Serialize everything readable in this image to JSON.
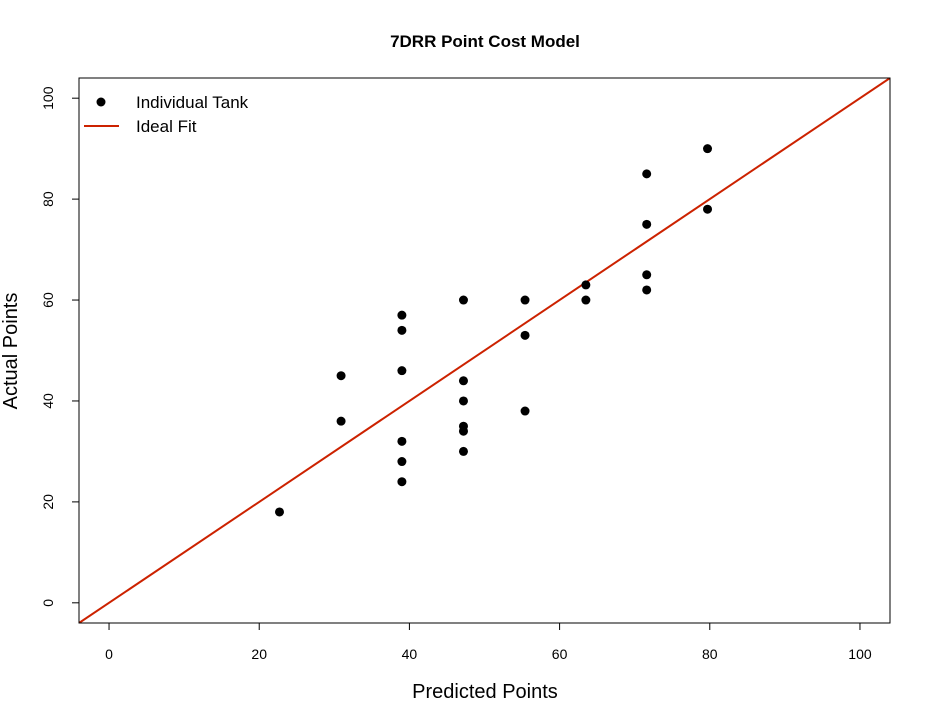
{
  "chart_data": {
    "type": "scatter",
    "title": "7DRR Point Cost Model",
    "xlabel": "Predicted Points",
    "ylabel": "Actual Points",
    "xlim": [
      -4,
      104
    ],
    "ylim": [
      -4,
      104
    ],
    "x_ticks": [
      0,
      20,
      40,
      60,
      80,
      100
    ],
    "y_ticks": [
      0,
      20,
      40,
      60,
      80,
      100
    ],
    "grid": false,
    "legend_position": "top-left",
    "series": [
      {
        "name": "Individual Tank",
        "color": "#000000",
        "marker": "filled-circle",
        "points": [
          {
            "x": 22.7,
            "y": 18
          },
          {
            "x": 30.9,
            "y": 45
          },
          {
            "x": 30.9,
            "y": 36
          },
          {
            "x": 39.0,
            "y": 57
          },
          {
            "x": 39.0,
            "y": 54
          },
          {
            "x": 39.0,
            "y": 46
          },
          {
            "x": 39.0,
            "y": 32
          },
          {
            "x": 39.0,
            "y": 28
          },
          {
            "x": 39.0,
            "y": 24
          },
          {
            "x": 47.2,
            "y": 60
          },
          {
            "x": 47.2,
            "y": 44
          },
          {
            "x": 47.2,
            "y": 40
          },
          {
            "x": 47.2,
            "y": 35
          },
          {
            "x": 47.2,
            "y": 34
          },
          {
            "x": 47.2,
            "y": 30
          },
          {
            "x": 55.4,
            "y": 60
          },
          {
            "x": 55.4,
            "y": 53
          },
          {
            "x": 55.4,
            "y": 38
          },
          {
            "x": 63.5,
            "y": 63
          },
          {
            "x": 63.5,
            "y": 60
          },
          {
            "x": 71.6,
            "y": 85
          },
          {
            "x": 71.6,
            "y": 75
          },
          {
            "x": 71.6,
            "y": 65
          },
          {
            "x": 71.6,
            "y": 62
          },
          {
            "x": 79.7,
            "y": 90
          },
          {
            "x": 79.7,
            "y": 78
          }
        ]
      },
      {
        "name": "Ideal Fit",
        "color": "#cc2200",
        "type": "line",
        "slope": 1,
        "intercept": 0
      }
    ]
  }
}
